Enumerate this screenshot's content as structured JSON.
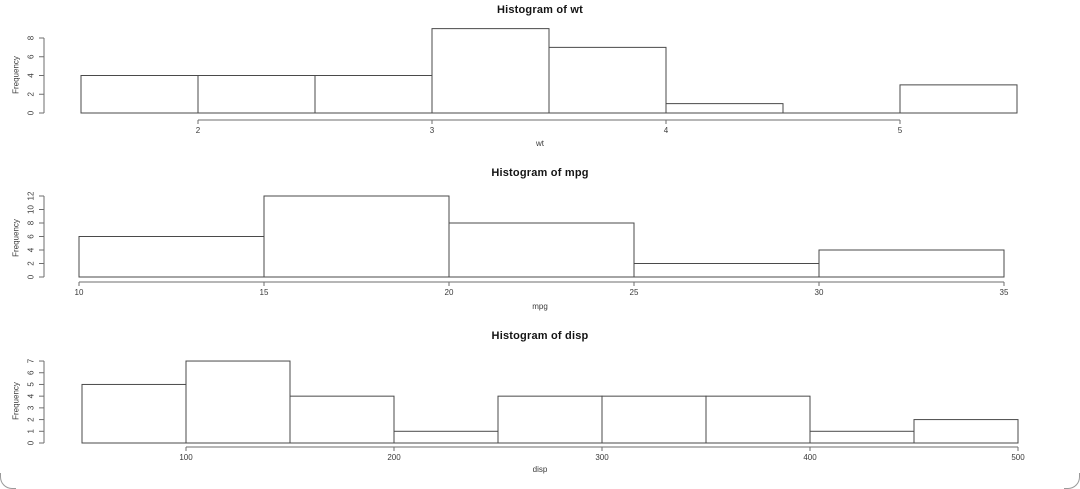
{
  "style": {
    "background": "#ffffff",
    "bar_fill": "#ffffff",
    "bar_stroke": "#4a4a4a",
    "axis_color": "#6e6e6e",
    "text_color": "#3a3a3a",
    "title_color": "#141414"
  },
  "chart_data": [
    {
      "type": "bar",
      "variant": "histogram",
      "title": "Histogram of wt",
      "xlabel": "wt",
      "ylabel": "Frequency",
      "breaks": [
        1.5,
        2,
        2.5,
        3,
        3.5,
        4,
        4.5,
        5,
        5.5
      ],
      "counts": [
        4,
        4,
        4,
        9,
        7,
        1,
        0,
        3
      ],
      "x_ticks": [
        2,
        3,
        4,
        5
      ],
      "y_ticks": [
        0,
        2,
        4,
        6,
        8
      ],
      "xlim": [
        1.5,
        5.5
      ],
      "ylim": [
        0,
        9
      ],
      "grid": false,
      "legend": false
    },
    {
      "type": "bar",
      "variant": "histogram",
      "title": "Histogram of mpg",
      "xlabel": "mpg",
      "ylabel": "Frequency",
      "breaks": [
        10,
        15,
        20,
        25,
        30,
        35
      ],
      "counts": [
        6,
        12,
        8,
        2,
        4
      ],
      "x_ticks": [
        10,
        15,
        20,
        25,
        30,
        35
      ],
      "y_ticks": [
        0,
        2,
        4,
        6,
        8,
        10,
        12
      ],
      "xlim": [
        10,
        35
      ],
      "ylim": [
        0,
        12
      ],
      "grid": false,
      "legend": false
    },
    {
      "type": "bar",
      "variant": "histogram",
      "title": "Histogram of disp",
      "xlabel": "disp",
      "ylabel": "Frequency",
      "breaks": [
        50,
        100,
        150,
        200,
        250,
        300,
        350,
        400,
        450,
        500
      ],
      "counts": [
        5,
        7,
        4,
        1,
        4,
        4,
        4,
        1,
        2
      ],
      "x_ticks": [
        100,
        200,
        300,
        400,
        500
      ],
      "y_ticks": [
        0,
        1,
        2,
        3,
        4,
        5,
        6,
        7
      ],
      "xlim": [
        50,
        500
      ],
      "ylim": [
        0,
        7
      ],
      "grid": false,
      "legend": false
    }
  ]
}
